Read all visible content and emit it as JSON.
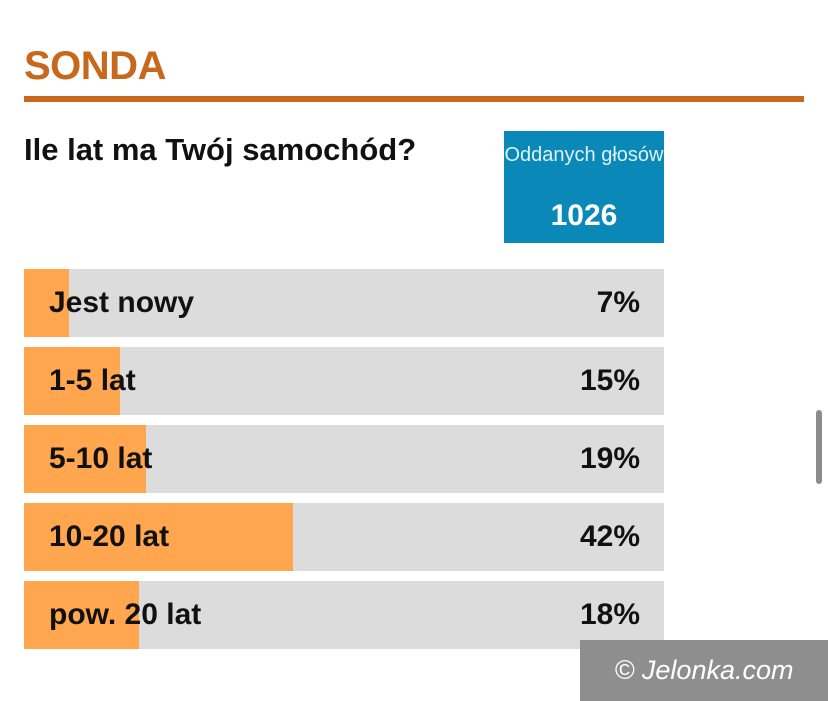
{
  "header": {
    "title": "SONDA",
    "accent_color": "#c8681c"
  },
  "poll": {
    "question": "Ile lat ma Twój samochód?",
    "votes": {
      "label": "Oddanych głosów",
      "count": "1026",
      "box_color": "#0a89b8"
    },
    "bar_fill_color": "#ffa64f",
    "bar_track_color": "#dcdcdc",
    "options": [
      {
        "label": "Jest nowy",
        "percent_text": "7%",
        "percent": 7
      },
      {
        "label": "1-5 lat",
        "percent_text": "15%",
        "percent": 15
      },
      {
        "label": "5-10 lat",
        "percent_text": "19%",
        "percent": 19
      },
      {
        "label": "10-20 lat",
        "percent_text": "42%",
        "percent": 42
      },
      {
        "label": "pow. 20 lat",
        "percent_text": "18%",
        "percent": 18
      }
    ]
  },
  "watermark": {
    "text": "© Jelonka.com"
  }
}
